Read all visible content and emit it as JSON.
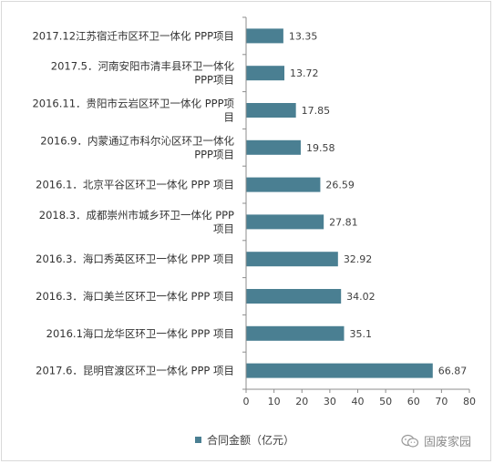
{
  "chart_data": {
    "type": "bar",
    "orientation": "horizontal",
    "categories": [
      [
        "2017.12江苏宿迁市区环卫一体化 PPP项目"
      ],
      [
        "2017.5．河南安阳市清丰县环卫一体化",
        "PPP项目"
      ],
      [
        "2016.11．贵阳市云岩区环卫一体化 PPP项",
        "目"
      ],
      [
        "2016.9．内蒙通辽市科尔沁区环卫一体化",
        "PPP项目"
      ],
      [
        "2016.1．北京平谷区环卫一体化 PPP 项目"
      ],
      [
        "2018.3．成都崇州市城乡环卫一体化 PPP",
        "项目"
      ],
      [
        "2016.3．海口秀英区环卫一体化 PPP 项目"
      ],
      [
        "2016.3．海口美兰区环卫一体化 PPP 项目"
      ],
      [
        "2016.1海口龙华区环卫一体化 PPP 项目"
      ],
      [
        "2017.6．昆明官渡区环卫一体化 PPP 项目"
      ]
    ],
    "series": [
      {
        "name": "合同金额（亿元）",
        "values": [
          13.35,
          13.72,
          17.85,
          19.58,
          26.59,
          27.81,
          32.92,
          34.02,
          35.1,
          66.87
        ],
        "labels": [
          "13.35",
          "13.72",
          "17.85",
          "19.58",
          "26.59",
          "27.81",
          "32.92",
          "34.02",
          "35.1",
          "66.87"
        ]
      }
    ],
    "xlim": [
      0,
      80
    ],
    "xticks": [
      "0",
      "10",
      "20",
      "30",
      "40",
      "50",
      "60",
      "70",
      "80"
    ],
    "grid": false,
    "legend": "bottom",
    "bar_color": "#4a7f92"
  },
  "watermark": {
    "text": "固废家园",
    "icon": "wechat-icon"
  }
}
